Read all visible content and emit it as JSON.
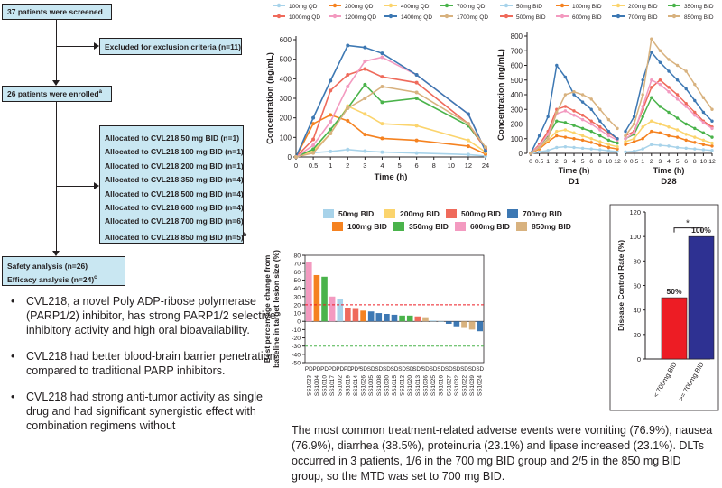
{
  "flowchart": {
    "screened": "37 patients were screened",
    "excluded": "Excluded for exclusion criteria (n=11)",
    "enrolled": "26 patients were enrolled",
    "enrolled_mark": "a",
    "allocations": [
      {
        "text": "Allocated to CVL218 50 mg BID (n=1)",
        "mark": ""
      },
      {
        "text": "Allocated to CVL218 100 mg BID (n=1)",
        "mark": ""
      },
      {
        "text": "Allocated to CVL218 200 mg BID (n=1)",
        "mark": ""
      },
      {
        "text": "Allocated to CVL218 350 mg BID (n=4)",
        "mark": ""
      },
      {
        "text": "Allocated to CVL218 500 mg BID (n=4)",
        "mark": ""
      },
      {
        "text": "Allocated to CVL218 600 mg BID (n=4)",
        "mark": ""
      },
      {
        "text": "Allocated to CVL218 700 mg BID (n=6)",
        "mark": ""
      },
      {
        "text": "Allocated to CVL218 850 mg BID (n=5)",
        "mark": "b"
      }
    ],
    "safety": "Safety analysis (n=26)",
    "efficacy": "Efficacy analysis (n=24)",
    "efficacy_mark": "c"
  },
  "bullets": [
    "CVL218, a novel Poly ADP-ribose polymerase (PARP1/2) inhibitor, has strong PARP1/2 selective inhibitory activity and high oral bioavailability.",
    "CVL218 had better blood-brain barrier penetration compared to traditional PARP inhibitors.",
    "CVL218 had strong anti-tumor activity as single drug and had significant synergistic effect with combination regimens without"
  ],
  "bullet_symbol": "•",
  "summary": "The most common treatment-related adverse events were vomiting (76.9%), nausea (76.9%), diarrhea (38.5%), proteinuria (23.1%) and lipase increased (23.1%). DLTs occurred in 3 patients, 1/6 in the 700 mg BID group and 2/5 in the 850 mg BID group, so the MTD was set to 700 mg BID.",
  "chart_data": [
    {
      "type": "line",
      "panel": "qd-pk",
      "ylabel": "Concentration (ng/mL)",
      "xlabel": "Time (h)",
      "ylim": [
        0,
        600
      ],
      "yticks": [
        0,
        100,
        200,
        300,
        400,
        500,
        600
      ],
      "xticks": [
        "0",
        "0.5",
        "1",
        "2",
        "3",
        "4",
        "5",
        "6",
        "8",
        "10",
        "12",
        "24"
      ],
      "legend_position": "top",
      "x": [
        0,
        0.5,
        1,
        2,
        3,
        4,
        6,
        12,
        24
      ],
      "series": [
        {
          "name": "100mg QD",
          "color": "#a8d3ea",
          "values": [
            0,
            22,
            28,
            38,
            30,
            25,
            20,
            12,
            5
          ]
        },
        {
          "name": "200mg QD",
          "color": "#f58220",
          "values": [
            0,
            170,
            215,
            185,
            115,
            95,
            85,
            55,
            15
          ]
        },
        {
          "name": "400mg QD",
          "color": "#fbd46d",
          "values": [
            0,
            30,
            120,
            260,
            220,
            170,
            160,
            85,
            25
          ]
        },
        {
          "name": "700mg QD",
          "color": "#4ab34b",
          "values": [
            0,
            40,
            140,
            250,
            370,
            280,
            300,
            160,
            45
          ]
        },
        {
          "name": "1000mg QD",
          "color": "#ef6a5b",
          "values": [
            0,
            90,
            340,
            420,
            450,
            410,
            380,
            170,
            40
          ]
        },
        {
          "name": "1200mg QD",
          "color": "#f39ac0",
          "values": [
            0,
            60,
            180,
            360,
            490,
            510,
            420,
            220,
            30
          ]
        },
        {
          "name": "1400mg QD",
          "color": "#3d78b3",
          "values": [
            0,
            200,
            390,
            570,
            560,
            530,
            420,
            220,
            30
          ]
        },
        {
          "name": "1700mg QD",
          "color": "#d8b27f",
          "values": [
            0,
            20,
            120,
            250,
            300,
            360,
            330,
            170,
            50
          ]
        }
      ]
    },
    {
      "type": "line",
      "panel": "bid-pk",
      "ylabel": "Concentration (ng/mL)",
      "xlabel": "Time (h)",
      "panel_labels": [
        "D1",
        "D28"
      ],
      "ylim": [
        0,
        800
      ],
      "yticks": [
        0,
        100,
        200,
        300,
        400,
        500,
        600,
        700,
        800
      ],
      "xticks": [
        "0",
        "0.5",
        "1",
        "2",
        "3",
        "4",
        "5",
        "6",
        "8",
        "10",
        "12"
      ],
      "legend_position": "top",
      "x": [
        0,
        0.5,
        1,
        2,
        3,
        4,
        5,
        6,
        8,
        10,
        12
      ],
      "series": [
        {
          "name": "50mg BID",
          "color": "#a8d3ea",
          "d1": [
            0,
            10,
            20,
            40,
            45,
            40,
            35,
            30,
            25,
            18,
            12
          ],
          "d28": [
            10,
            15,
            30,
            60,
            55,
            50,
            40,
            35,
            30,
            25,
            20
          ]
        },
        {
          "name": "100mg BID",
          "color": "#f58220",
          "d1": [
            0,
            30,
            80,
            120,
            110,
            100,
            90,
            75,
            55,
            40,
            30
          ],
          "d28": [
            60,
            80,
            100,
            150,
            140,
            120,
            110,
            90,
            75,
            60,
            50
          ]
        },
        {
          "name": "200mg BID",
          "color": "#fbd46d",
          "d1": [
            0,
            40,
            90,
            150,
            160,
            140,
            120,
            100,
            80,
            60,
            45
          ],
          "d28": [
            80,
            100,
            180,
            220,
            200,
            180,
            160,
            130,
            110,
            90,
            70
          ]
        },
        {
          "name": "350mg BID",
          "color": "#4ab34b",
          "d1": [
            0,
            50,
            120,
            220,
            210,
            190,
            170,
            150,
            120,
            90,
            70
          ],
          "d28": [
            100,
            130,
            250,
            380,
            320,
            280,
            240,
            200,
            170,
            140,
            110
          ]
        },
        {
          "name": "500mg BID",
          "color": "#ef6a5b",
          "d1": [
            0,
            60,
            150,
            300,
            320,
            290,
            260,
            220,
            180,
            140,
            100
          ],
          "d28": [
            120,
            150,
            300,
            450,
            500,
            450,
            400,
            340,
            280,
            220,
            180
          ]
        },
        {
          "name": "600mg BID",
          "color": "#f39ac0",
          "d1": [
            0,
            50,
            130,
            270,
            290,
            260,
            230,
            200,
            160,
            120,
            90
          ],
          "d28": [
            100,
            140,
            320,
            500,
            470,
            420,
            370,
            320,
            260,
            210,
            170
          ]
        },
        {
          "name": "700mg BID",
          "color": "#3d78b3",
          "d1": [
            0,
            120,
            250,
            600,
            520,
            400,
            350,
            300,
            220,
            150,
            100
          ],
          "d28": [
            150,
            250,
            500,
            690,
            620,
            560,
            500,
            440,
            360,
            280,
            220
          ]
        },
        {
          "name": "850mg BID",
          "color": "#d8b27f",
          "d1": [
            0,
            40,
            100,
            280,
            400,
            420,
            400,
            370,
            300,
            230,
            170
          ],
          "d28": [
            120,
            200,
            400,
            780,
            700,
            640,
            600,
            560,
            470,
            380,
            300
          ]
        }
      ]
    },
    {
      "type": "bar",
      "panel": "waterfall",
      "ylabel": "Best percentage change from baseline in target lesion size (%)",
      "ylim": [
        -50,
        80
      ],
      "yticks": [
        80,
        70,
        60,
        50,
        40,
        30,
        20,
        10,
        0,
        -10,
        -20,
        -30,
        -40,
        -50
      ],
      "reference_lines": [
        20,
        -30
      ],
      "legend": [
        {
          "name": "50mg BID",
          "color": "#a8d3ea"
        },
        {
          "name": "100mg BID",
          "color": "#f58220"
        },
        {
          "name": "200mg BID",
          "color": "#fbd46d"
        },
        {
          "name": "350mg BID",
          "color": "#4ab34b"
        },
        {
          "name": "500mg BID",
          "color": "#ef6a5b"
        },
        {
          "name": "600mg BID",
          "color": "#f39ac0"
        },
        {
          "name": "700mg BID",
          "color": "#3d78b3"
        },
        {
          "name": "850mg BID",
          "color": "#d8b27f"
        }
      ],
      "categories": [
        "SS1023",
        "SS1004",
        "SS1010",
        "SS1017",
        "SS1002",
        "SS1019",
        "SS1014",
        "SS1026",
        "SS1005",
        "SS1008",
        "SS1030",
        "SS1015",
        "SS1012",
        "SS1020",
        "SS1013",
        "SS1036",
        "SS1025",
        "SS1016",
        "SS1027",
        "SS1032",
        "SS1022",
        "SS1039",
        "SS1024"
      ],
      "responses": [
        "PD",
        "PD",
        "PD",
        "PD",
        "PD",
        "PD",
        "PD",
        "SD",
        "SD",
        "SD",
        "SD",
        "SD",
        "SD",
        "SD",
        "SD",
        "SD",
        "SD",
        "SD",
        "SD",
        "SD",
        "SD",
        "SD",
        "SD"
      ],
      "response_marks": [
        "",
        "",
        "",
        "",
        "",
        "",
        "a",
        "",
        "",
        "",
        "",
        "",
        "",
        "",
        "a",
        "",
        "",
        "",
        "",
        "",
        "",
        "",
        ""
      ],
      "values": [
        72,
        56,
        54,
        30,
        27,
        16,
        15,
        13,
        12,
        10,
        9,
        8,
        7,
        7,
        6,
        5,
        1,
        0,
        -3,
        -6,
        -8,
        -10,
        -12
      ],
      "colors": [
        "#f39ac0",
        "#f58220",
        "#4ab34b",
        "#f39ac0",
        "#a8d3ea",
        "#ef6a5b",
        "#ef6a5b",
        "#f58220",
        "#3d78b3",
        "#3d78b3",
        "#3d78b3",
        "#3d78b3",
        "#4ab34b",
        "#4ab34b",
        "#ef6a5b",
        "#d8b27f",
        "#a8d3ea",
        "#a8d3ea",
        "#3d78b3",
        "#3d78b3",
        "#d8b27f",
        "#d8b27f",
        "#3d78b3"
      ]
    },
    {
      "type": "bar",
      "panel": "dcr",
      "ylabel": "Disease Control Rate (%)",
      "ylim": [
        0,
        120
      ],
      "yticks": [
        0,
        20,
        40,
        60,
        80,
        100,
        120
      ],
      "categories": [
        "< 700mg BID",
        ">= 700mg BID"
      ],
      "values": [
        50,
        100
      ],
      "labels": [
        "50%",
        "100%"
      ],
      "colors": [
        "#ed1c24",
        "#2e3192"
      ],
      "significance": "*"
    }
  ]
}
